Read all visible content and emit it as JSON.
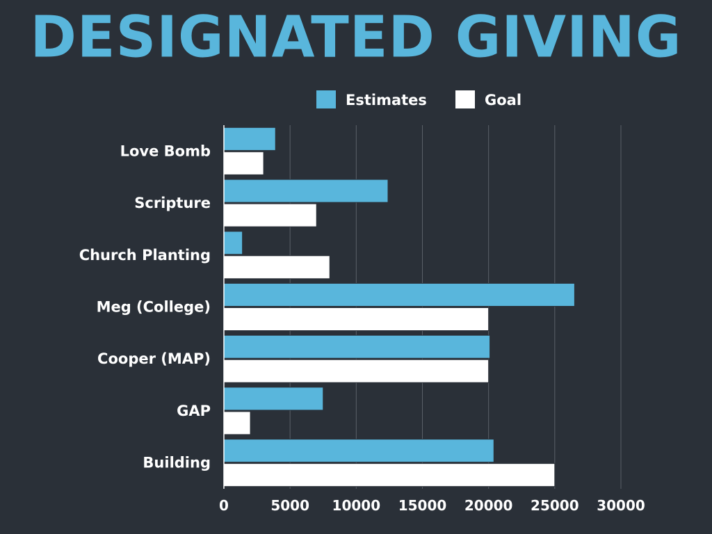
{
  "chart_data": {
    "type": "bar",
    "orientation": "horizontal",
    "title": "DESIGNATED GIVING",
    "categories": [
      "Love Bomb",
      "Scripture",
      "Church Planting",
      "Meg (College)",
      "Cooper (MAP)",
      "GAP",
      "Building"
    ],
    "series": [
      {
        "name": "Estimates",
        "color": "#59b6dc",
        "values": [
          3900,
          12400,
          1400,
          26500,
          20100,
          7500,
          20400
        ]
      },
      {
        "name": "Goal",
        "color": "#ffffff",
        "values": [
          3000,
          7000,
          8000,
          20000,
          20000,
          2000,
          25000
        ]
      }
    ],
    "xlim": [
      0,
      30000
    ],
    "xticks": [
      0,
      5000,
      10000,
      15000,
      20000,
      25000,
      30000
    ],
    "grid": true,
    "legend_position": "top"
  }
}
